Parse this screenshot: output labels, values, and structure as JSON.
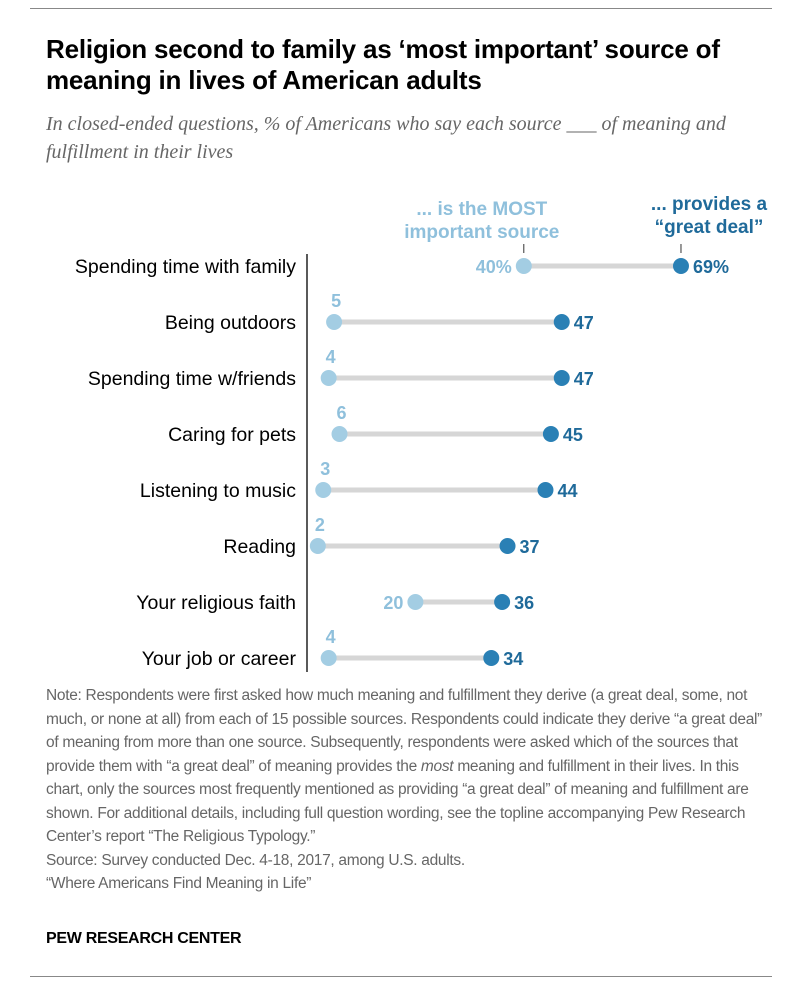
{
  "title": "Religion second to family as ‘most important’ source of meaning in lives of American adults",
  "subtitle": "In closed-ended questions, % of Americans who say each source ___ of meaning and fulfillment in their lives",
  "chart_data": {
    "type": "dot-range",
    "title": "Religion second to family as ‘most important’ source of meaning in lives of American adults",
    "xlim": [
      0,
      75
    ],
    "unit": "%",
    "legend": [
      {
        "name": "... is the MOST important source",
        "color": "#a3cde3"
      },
      {
        "name": "... provides a “great deal”",
        "color": "#2a80b5"
      }
    ],
    "categories": [
      "Spending time with family",
      "Being outdoors",
      "Spending time w/friends",
      "Caring for pets",
      "Listening to music",
      "Reading",
      "Your religious faith",
      "Your job or career"
    ],
    "series": [
      {
        "name": "... is the MOST important source",
        "values": [
          40,
          5,
          4,
          6,
          3,
          2,
          20,
          4
        ]
      },
      {
        "name": "... provides a “great deal”",
        "values": [
          69,
          47,
          47,
          45,
          44,
          37,
          36,
          34
        ]
      }
    ],
    "colors": {
      "most": "#a3cde3",
      "most_label": "#8fc0dc",
      "great": "#2a80b5",
      "great_label": "#1f6a9a",
      "connector": "#d6d6d6"
    }
  },
  "note": {
    "part1": "Note: Respondents were first asked how much meaning and fulfillment they derive (a great deal, some, not much, or none at all) from each of 15 possible sources. Respondents could indicate they derive “a great deal” of meaning from more than one source. Subsequently, respondents were asked which of the sources that provide them with “a great deal” of meaning provides the ",
    "italic": "most",
    "part2": " meaning and fulfillment in their lives. In this chart, only the sources most frequently mentioned as providing “a great deal” of meaning and fulfillment are shown. For additional details, including full question wording, see the topline accompanying Pew Research Center’s report “The Religious Typology.”",
    "source": "Source: Survey conducted Dec. 4-18, 2017, among U.S. adults.",
    "report": "“Where Americans Find Meaning in Life”"
  },
  "brand": "PEW RESEARCH CENTER"
}
